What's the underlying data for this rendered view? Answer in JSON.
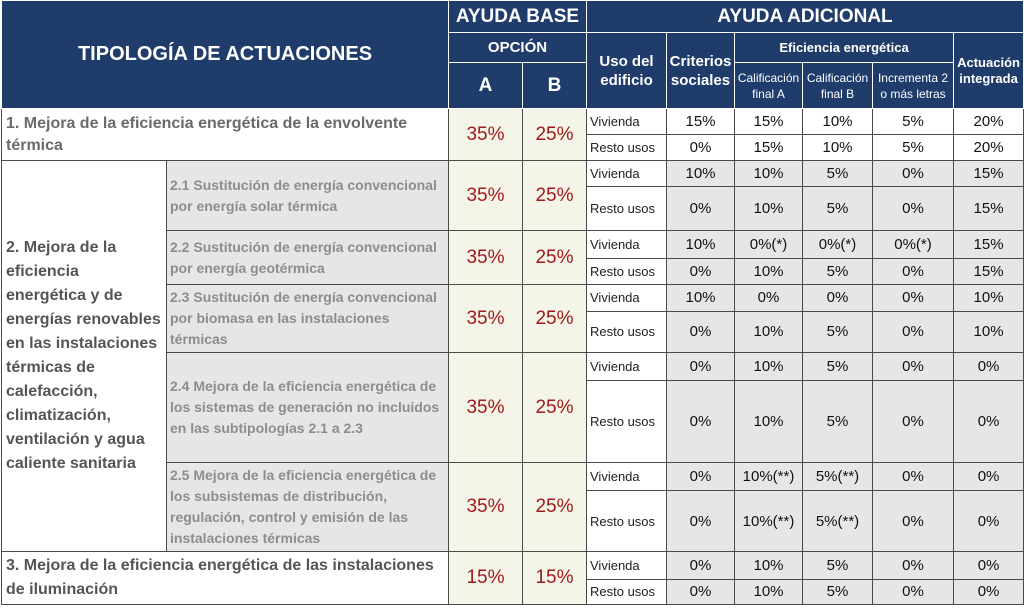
{
  "header": {
    "tipologia": "TIPOLOGÍA DE ACTUACIONES",
    "ayuda_base": "AYUDA BASE",
    "opcion": "OPCIÓN",
    "opt_a": "A",
    "opt_b": "B",
    "ayuda_adicional": "AYUDA ADICIONAL",
    "uso": "Uso del edificio",
    "criterios": "Criterios sociales",
    "eficiencia": "Eficiencia energética",
    "cal_a": "Calificación final A",
    "cal_b": "Calificación final B",
    "incrementa": "Incrementa 2 o más letras",
    "integrada": "Actuación integrada"
  },
  "sections": {
    "s1": "1. Mejora de la eficiencia energética de la envolvente térmica",
    "s2": "2. Mejora de la eficiencia energética y de energías renovables en las instalaciones térmicas de calefacción, climatización, ventilación y agua caliente sanitaria",
    "s3": "3. Mejora de la eficiencia energética de las instalaciones de iluminación"
  },
  "subsections": {
    "s21": "2.1 Sustitución de energía convencional por energía solar térmica",
    "s22": "2.2 Sustitución de energía convencional por energía geotérmica",
    "s23": "2.3 Sustitución de energía convencional por biomasa en las instalaciones térmicas",
    "s24": "2.4 Mejora de la eficiencia energética de los sistemas de generación no incluidos en las subtipologías 2.1 a 2.3",
    "s25": "2.5 Mejora de la eficiencia energética de los subsistemas de distribución, regulación, control y emisión de las instalaciones térmicas"
  },
  "groups": [
    {
      "a": "35%",
      "b": "25%",
      "rows": [
        {
          "uso": "Vivienda",
          "v": [
            "15%",
            "15%",
            "10%",
            "5%",
            "20%"
          ]
        },
        {
          "uso": "Resto usos",
          "v": [
            "0%",
            "15%",
            "10%",
            "5%",
            "20%"
          ]
        }
      ]
    },
    {
      "a": "35%",
      "b": "25%",
      "rows": [
        {
          "uso": "Vivienda",
          "v": [
            "10%",
            "10%",
            "5%",
            "0%",
            "15%"
          ]
        },
        {
          "uso": "Resto usos",
          "v": [
            "0%",
            "10%",
            "5%",
            "0%",
            "15%"
          ]
        }
      ]
    },
    {
      "a": "35%",
      "b": "25%",
      "rows": [
        {
          "uso": "Vivienda",
          "v": [
            "10%",
            "0%(*)",
            "0%(*)",
            "0%(*)",
            "15%"
          ]
        },
        {
          "uso": "Resto usos",
          "v": [
            "0%",
            "10%",
            "5%",
            "0%",
            "15%"
          ]
        }
      ]
    },
    {
      "a": "35%",
      "b": "25%",
      "rows": [
        {
          "uso": "Vivienda",
          "v": [
            "10%",
            "0%",
            "0%",
            "0%",
            "10%"
          ]
        },
        {
          "uso": "Resto usos",
          "v": [
            "0%",
            "10%",
            "5%",
            "0%",
            "10%"
          ]
        }
      ]
    },
    {
      "a": "35%",
      "b": "25%",
      "rows": [
        {
          "uso": "Vivienda",
          "v": [
            "0%",
            "10%",
            "5%",
            "0%",
            "0%"
          ]
        },
        {
          "uso": "Resto usos",
          "v": [
            "0%",
            "10%",
            "5%",
            "0%",
            "0%"
          ]
        }
      ]
    },
    {
      "a": "35%",
      "b": "25%",
      "rows": [
        {
          "uso": "Vivienda",
          "v": [
            "0%",
            "10%(**)",
            "5%(**)",
            "0%",
            "0%"
          ]
        },
        {
          "uso": "Resto usos",
          "v": [
            "0%",
            "10%(**)",
            "5%(**)",
            "0%",
            "0%"
          ]
        }
      ]
    },
    {
      "a": "15%",
      "b": "15%",
      "rows": [
        {
          "uso": "Vivienda",
          "v": [
            "0%",
            "10%",
            "5%",
            "0%",
            "0%"
          ]
        },
        {
          "uso": "Resto usos",
          "v": [
            "0%",
            "10%",
            "5%",
            "0%",
            "0%"
          ]
        }
      ]
    }
  ]
}
